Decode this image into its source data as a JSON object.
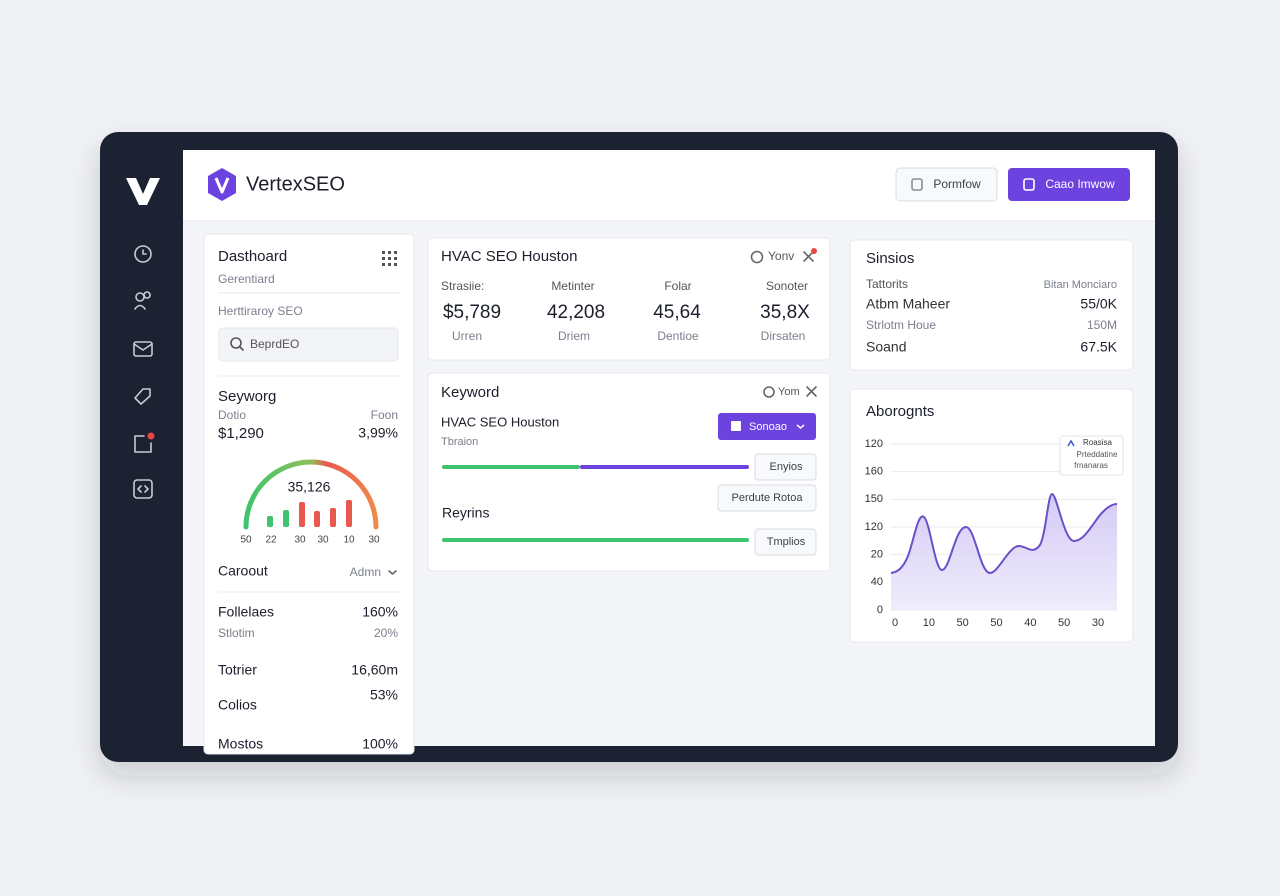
{
  "brand": "VertexSEO",
  "header": {
    "buttons": [
      "Pormfow",
      "Caao Imwow"
    ]
  },
  "left_panel": {
    "title": "Dasthoard",
    "subtitle": "Gerentiard",
    "section": "Herttiraroy SEO",
    "search": "BeprdEO",
    "metric": {
      "title": "Seyworg",
      "label_left": "Dotio",
      "label_right": "Foon",
      "value_left": "$1,290",
      "value_right": "3,99%",
      "gauge_value": "35,126",
      "gauge_labels": [
        "50",
        "22",
        "30",
        "30",
        "10",
        "30"
      ]
    },
    "dropdown": {
      "label": "Caroout",
      "value": "Admn"
    },
    "rows": [
      {
        "label": "Follelaes",
        "value": "160%"
      },
      {
        "label": "Stlotim",
        "value": "20%"
      },
      {
        "label": "Totrier",
        "value": "16,60m"
      },
      {
        "label": "Colios",
        "value": "53%"
      },
      {
        "label": "Mostos",
        "value": "100%"
      }
    ]
  },
  "summary_card": {
    "title": "HVAC SEO Houston",
    "action": "Yonv",
    "columns": [
      {
        "label": "Strasiie:",
        "value": "$5,789",
        "sub": "Urren"
      },
      {
        "label": "Metinter",
        "value": "42,208",
        "sub": "Driem"
      },
      {
        "label": "Folar",
        "value": "45,64",
        "sub": "Dentioe"
      },
      {
        "label": "Sonoter",
        "value": "35,8X",
        "sub": "Dirsaten"
      }
    ]
  },
  "keyword_card": {
    "title": "Keyword",
    "action": "Yom",
    "item_title": "HVAC SEO Houston",
    "item_sub": "Tbraion",
    "select": "Sonoao",
    "buttons": [
      "Enyios",
      "Perdute Rotoa",
      "Tmplios"
    ],
    "section": "Reyrins"
  },
  "sessions_card": {
    "title": "Sinsios",
    "header_left": "Tattorits",
    "header_right": "Bitan Monciaro",
    "rows": [
      {
        "label": "Atbm Maheer",
        "value": "55/0K"
      },
      {
        "label": "Strlotm Houe",
        "value": "150M"
      },
      {
        "label": "Soand",
        "value": "67.5K"
      }
    ]
  },
  "chart_card": {
    "title": "Aborognts",
    "y_labels": [
      "120",
      "160",
      "150",
      "120",
      "20",
      "40",
      "0"
    ],
    "x_labels": [
      "0",
      "10",
      "50",
      "50",
      "40",
      "50",
      "30"
    ],
    "legend": [
      "Roasisa",
      "Prteddatine",
      "frnanaras"
    ]
  }
}
